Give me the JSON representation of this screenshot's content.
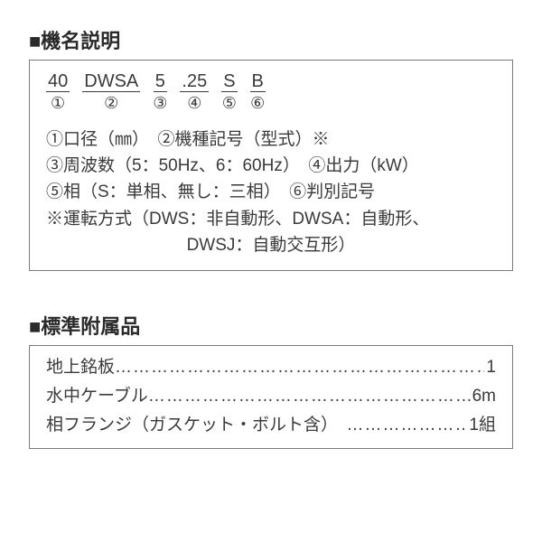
{
  "section1": {
    "title": "■機名説明",
    "model_parts": [
      {
        "text": "40",
        "num": "①"
      },
      {
        "text": "DWSA",
        "num": "②"
      },
      {
        "text": "5",
        "num": "③"
      },
      {
        "text": ".25",
        "num": "④"
      },
      {
        "text": "S",
        "num": "⑤"
      },
      {
        "text": "B",
        "num": "⑥"
      }
    ],
    "lines": [
      "①口径（㎜）　②機種記号（型式）※",
      "③周波数（5：50Hz、6：60Hz）　④出力（kW）",
      "⑤相（S：単相、無し：三相）　⑥判別記号",
      "※運転方式（DWS：非自動形、DWSA：自動形、"
    ],
    "indent_line": "DWSJ：自動交互形）"
  },
  "section2": {
    "title": "■標準附属品",
    "rows": [
      {
        "label": "地上銘板 ",
        "value": "1"
      },
      {
        "label": "水中ケーブル ",
        "value": "6m"
      },
      {
        "label": "相フランジ（ガスケット・ボルト含）　",
        "value": "1組"
      }
    ]
  },
  "colors": {
    "text": "#3a3a3a",
    "border": "#7a7a7a",
    "background": "#ffffff"
  }
}
